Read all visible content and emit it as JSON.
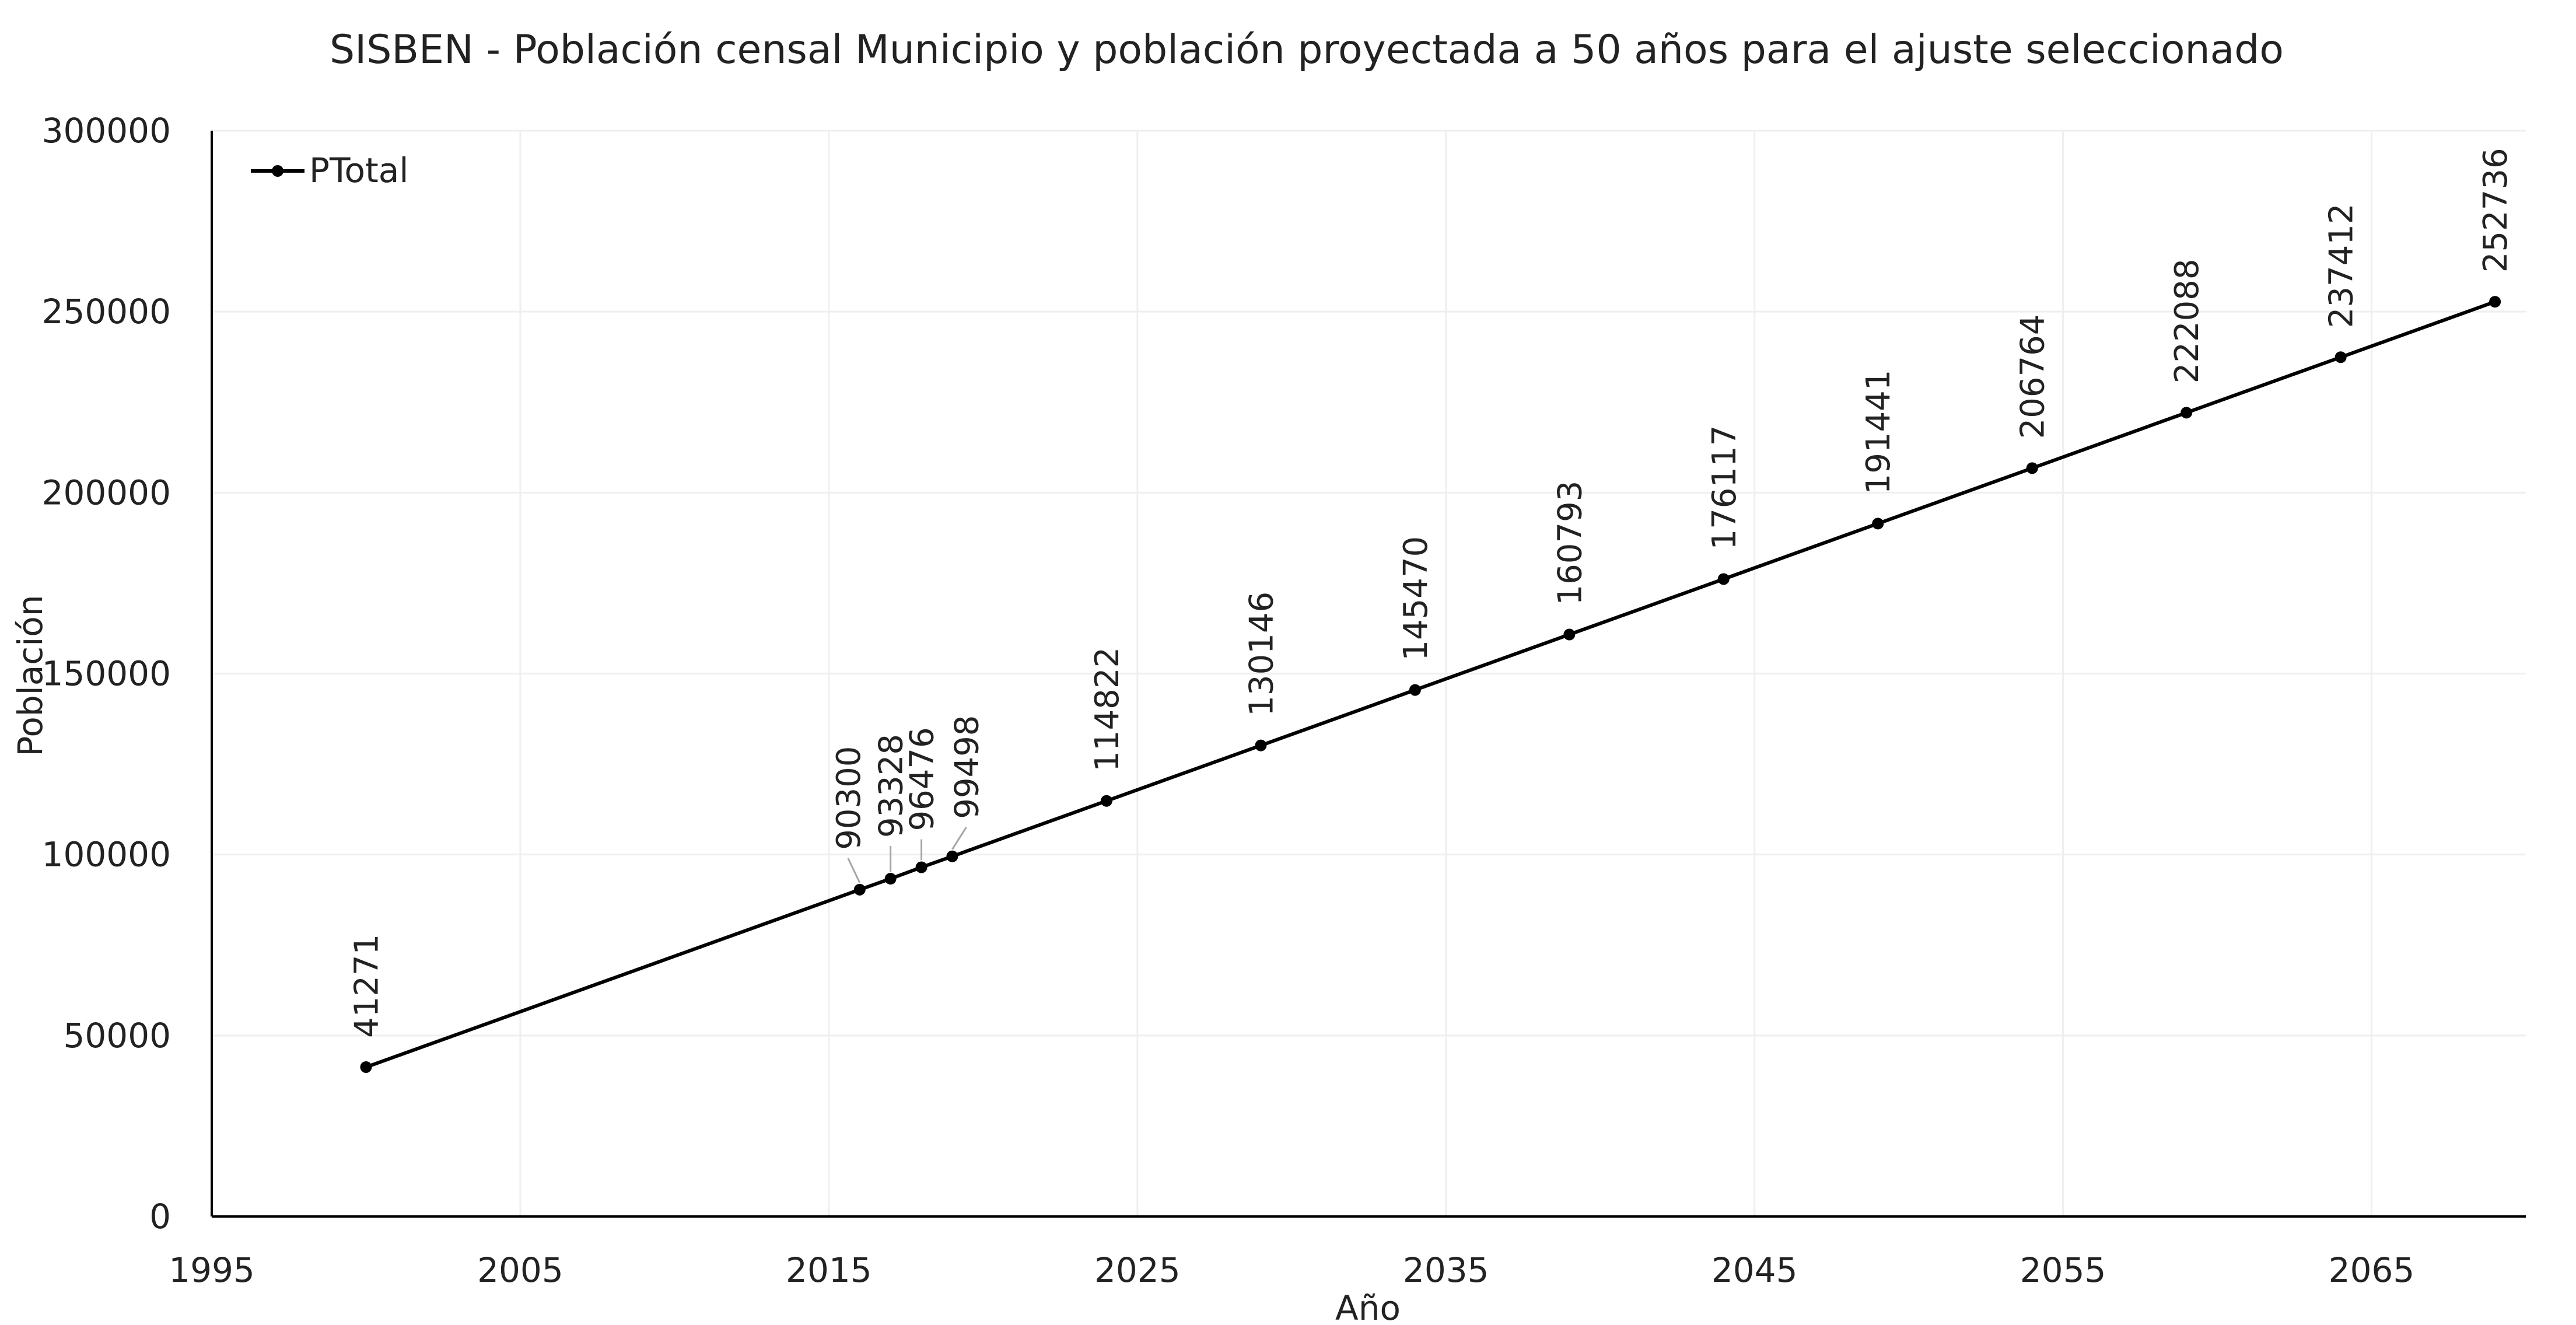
{
  "chart_data": {
    "type": "line",
    "title": "SISBEN - Población censal Municipio y población proyectada a 50 años para el ajuste seleccionado",
    "xlabel": "Año",
    "ylabel": "Población",
    "xlim": [
      1995,
      2070
    ],
    "ylim": [
      0,
      300000
    ],
    "x_ticks": [
      1995,
      2005,
      2015,
      2025,
      2035,
      2045,
      2055,
      2065
    ],
    "y_ticks": [
      0,
      50000,
      100000,
      150000,
      200000,
      250000,
      300000
    ],
    "grid": true,
    "legend_position": "top-left",
    "series": [
      {
        "name": "PTotal",
        "color": "#000000",
        "x": [
          2000,
          2016,
          2017,
          2018,
          2019,
          2024,
          2029,
          2034,
          2039,
          2044,
          2049,
          2054,
          2059,
          2064,
          2069
        ],
        "values": [
          41271,
          90300,
          93328,
          96476,
          99498,
          114822,
          130146,
          145470,
          160793,
          176117,
          191441,
          206764,
          222088,
          237412,
          252736
        ]
      }
    ]
  }
}
